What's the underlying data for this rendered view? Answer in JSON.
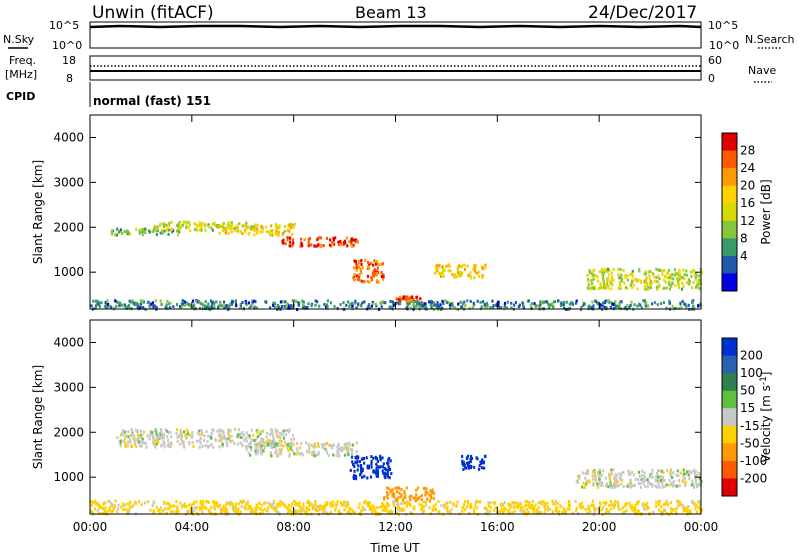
{
  "header": {
    "site": "Unwin (fitACF)",
    "beam": "Beam 13",
    "date": "24/Dec/2017"
  },
  "top_panels": {
    "nsky_label": "N.Sky",
    "nsky_ticks": [
      "10^5",
      "10^0"
    ],
    "nsearch_label": "N.Search",
    "freq_label_1": "Freq.",
    "freq_label_2": "[MHz]",
    "freq_ticks": [
      "18",
      "8"
    ],
    "nave_ticks": [
      "60",
      "0"
    ],
    "nave_label": "Nave",
    "cpid_label": "CPID",
    "cpid_value": "normal (fast) 151"
  },
  "chart_data": [
    {
      "type": "heatmap",
      "name": "power-panel",
      "ylabel": "Slant Range [km]",
      "yticks": [
        "4000",
        "3000",
        "2000",
        "1000"
      ],
      "ylim": [
        180,
        4500
      ],
      "colorbar_label": "Power [dB]",
      "colorbar_ticks": [
        "28",
        "24",
        "20",
        "16",
        "12",
        "8",
        "4"
      ],
      "colorbar_colors": [
        "#e00000",
        "#ff5a00",
        "#ff9a00",
        "#ffd200",
        "#d8d800",
        "#86c83c",
        "#3a9a6a",
        "#1e5aa8",
        "#0000e0"
      ],
      "echo_regions": [
        {
          "t": [
            0.8,
            3.5
          ],
          "r": [
            1850,
            2000
          ],
          "level": 10
        },
        {
          "t": [
            2.5,
            6.5
          ],
          "r": [
            1950,
            2150
          ],
          "level": 14
        },
        {
          "t": [
            5.0,
            8.0
          ],
          "r": [
            1850,
            2100
          ],
          "level": 18
        },
        {
          "t": [
            7.5,
            10.5
          ],
          "r": [
            1600,
            1800
          ],
          "level": 28
        },
        {
          "t": [
            10.3,
            11.5
          ],
          "r": [
            800,
            1300
          ],
          "level": 26
        },
        {
          "t": [
            12.0,
            13.0
          ],
          "r": [
            350,
            500
          ],
          "level": 28
        },
        {
          "t": [
            13.5,
            15.5
          ],
          "r": [
            900,
            1200
          ],
          "level": 18
        },
        {
          "t": [
            19.5,
            24.0
          ],
          "r": [
            650,
            1100
          ],
          "level": 14
        },
        {
          "t": [
            0.0,
            24.0
          ],
          "r": [
            200,
            400
          ],
          "level": 6
        }
      ]
    },
    {
      "type": "heatmap",
      "name": "velocity-panel",
      "xlabel": "Time UT",
      "xticks": [
        "00:00",
        "04:00",
        "08:00",
        "12:00",
        "16:00",
        "20:00",
        "00:00"
      ],
      "xlim": [
        0,
        24
      ],
      "ylabel": "Slant Range [km]",
      "yticks": [
        "4000",
        "3000",
        "2000",
        "1000"
      ],
      "ylim": [
        180,
        4500
      ],
      "colorbar_label": "Velocity [m s-1]",
      "colorbar_ticks": [
        "200",
        "100",
        "50",
        "15",
        "-15",
        "-50",
        "-100",
        "-200"
      ],
      "colorbar_colors": [
        "#0030d0",
        "#2a60b0",
        "#2e8050",
        "#60c040",
        "#c8c8c8",
        "#ffd000",
        "#ff9a00",
        "#ff5a00",
        "#e00000"
      ],
      "echo_regions": [
        {
          "t": [
            1.0,
            8.0
          ],
          "r": [
            1700,
            2100
          ],
          "value": 0
        },
        {
          "t": [
            6.0,
            10.5
          ],
          "r": [
            1500,
            1800
          ],
          "value": 0
        },
        {
          "t": [
            10.2,
            11.8
          ],
          "r": [
            1000,
            1500
          ],
          "value": 200
        },
        {
          "t": [
            11.5,
            13.5
          ],
          "r": [
            500,
            800
          ],
          "value": -80
        },
        {
          "t": [
            14.5,
            15.5
          ],
          "r": [
            1200,
            1500
          ],
          "value": 200
        },
        {
          "t": [
            19.0,
            24.0
          ],
          "r": [
            800,
            1200
          ],
          "value": 0
        },
        {
          "t": [
            0.0,
            24.0
          ],
          "r": [
            200,
            500
          ],
          "value": -30
        }
      ]
    }
  ]
}
